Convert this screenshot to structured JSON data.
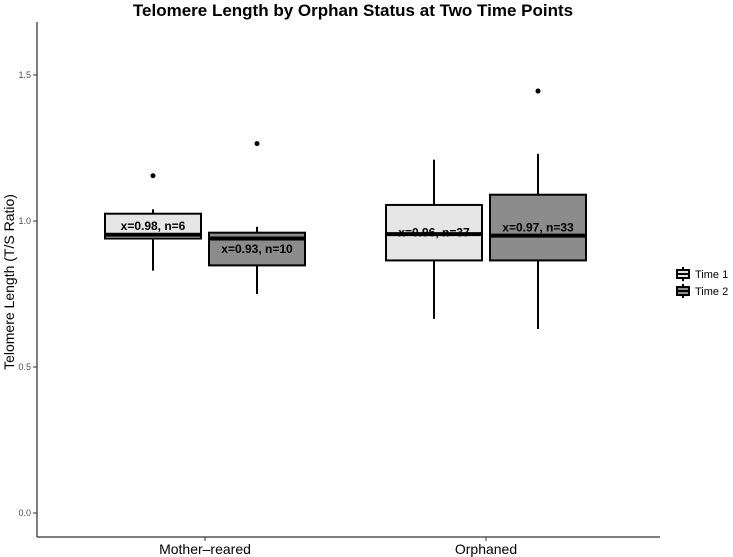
{
  "chart_data": {
    "type": "boxplot",
    "title": "Telomere Length by Orphan Status at Two Time Points",
    "xlabel": "",
    "ylabel": "Telomere Length (T/S Ratio)",
    "ylim": [
      0,
      1.65
    ],
    "yticks": [
      "0.0",
      "0.5",
      "1.0",
      "1.5"
    ],
    "categories": [
      "Mother–reared",
      "Orphaned"
    ],
    "legend_position": "right",
    "grid": false,
    "series": [
      {
        "name": "Time 1",
        "color": "#e6e6e6",
        "boxes": [
          {
            "min": 0.83,
            "q1": 0.94,
            "median": 0.953,
            "q3": 1.025,
            "max": 1.04,
            "outliers": [
              1.155
            ],
            "label": "x=0.98, n=6"
          },
          {
            "min": 0.665,
            "q1": 0.865,
            "median": 0.955,
            "q3": 1.055,
            "max": 1.21,
            "outliers": [],
            "label": "x=0.96, n=37"
          }
        ]
      },
      {
        "name": "Time 2",
        "color": "#8c8c8c",
        "boxes": [
          {
            "min": 0.75,
            "q1": 0.848,
            "median": 0.94,
            "q3": 0.96,
            "max": 0.98,
            "outliers": [
              1.265
            ],
            "label": "x=0.93, n=10"
          },
          {
            "min": 0.63,
            "q1": 0.865,
            "median": 0.95,
            "q3": 1.09,
            "max": 1.23,
            "outliers": [
              1.445
            ],
            "label": "x=0.97, n=33"
          }
        ]
      }
    ]
  }
}
